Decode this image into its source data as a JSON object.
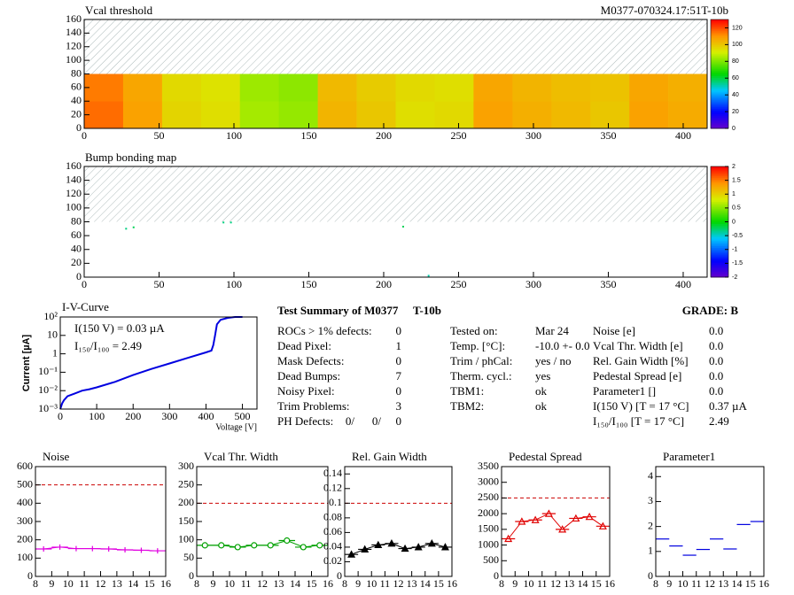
{
  "chart_data": [
    {
      "type": "heatmap",
      "title": "Vcal threshold",
      "subtitle": "M0377-070324.17:51T-10b",
      "xbins": [
        0,
        26,
        52,
        78,
        104,
        130,
        156,
        182,
        208,
        234,
        260,
        286,
        312,
        338,
        364,
        390,
        416
      ],
      "ybins": [
        0,
        40,
        80
      ],
      "values": [
        [
          116,
          108,
          97,
          95,
          85,
          83,
          104,
          100,
          95,
          96,
          108,
          105,
          103,
          100,
          108,
          106
        ],
        [
          114,
          107,
          96,
          94,
          84,
          82,
          103,
          99,
          96,
          95,
          107,
          104,
          102,
          101,
          107,
          105
        ]
      ],
      "xlim": [
        0,
        416
      ],
      "xticks": [
        0,
        50,
        100,
        150,
        200,
        250,
        300,
        350,
        400
      ],
      "ylim": [
        0,
        160
      ],
      "yticks": [
        0,
        20,
        40,
        60,
        80,
        100,
        120,
        140,
        160
      ],
      "zlim": [
        0,
        130
      ],
      "zticks": [
        0,
        20,
        40,
        60,
        80,
        100,
        120
      ]
    },
    {
      "type": "heatmap",
      "title": "Bump bonding map",
      "xbins": [
        0,
        416
      ],
      "ybins": [
        0,
        80
      ],
      "points": {
        "x": [
          28,
          33,
          93,
          98,
          213,
          230
        ],
        "y": [
          70,
          72,
          79,
          79,
          73,
          2
        ],
        "values": [
          -0.3,
          -0.2,
          -0.3,
          -0.3,
          -0.2,
          -0.4
        ]
      },
      "xlim": [
        0,
        416
      ],
      "xticks": [
        0,
        50,
        100,
        150,
        200,
        250,
        300,
        350,
        400
      ],
      "ylim": [
        0,
        160
      ],
      "yticks": [
        0,
        20,
        40,
        60,
        80,
        100,
        120,
        140,
        160
      ],
      "zlim": [
        -2,
        2
      ],
      "zticks": [
        -2,
        -1.5,
        -1,
        -0.5,
        0,
        0.5,
        1,
        1.5,
        2
      ]
    },
    {
      "type": "line",
      "title": "I-V-Curve",
      "x_label": "Voltage [V]",
      "y_label": "Current [µA]",
      "log_y": true,
      "color": "#0000e0",
      "annotations": [
        "I(150 V) = 0.03 µA",
        "I₁₅₀/I₁₀₀ =  2.49"
      ],
      "x": [
        0,
        5,
        10,
        20,
        40,
        60,
        80,
        100,
        150,
        200,
        250,
        300,
        350,
        400,
        415,
        420,
        425,
        430,
        440,
        460,
        480,
        500
      ],
      "values": [
        0.001,
        0.002,
        0.003,
        0.005,
        0.007,
        0.01,
        0.012,
        0.015,
        0.03,
        0.07,
        0.15,
        0.3,
        0.6,
        1.2,
        1.5,
        3,
        10,
        40,
        70,
        90,
        100,
        100
      ],
      "xlim": [
        0,
        540
      ],
      "xticks": [
        0,
        100,
        200,
        300,
        400,
        500
      ],
      "ylim": [
        0.001,
        100
      ],
      "yticks": [
        {
          "value": 0.001,
          "label": "10⁻³"
        },
        {
          "value": 0.01,
          "label": "10⁻²"
        },
        {
          "value": 0.1,
          "label": "10⁻¹"
        },
        1,
        10,
        {
          "value": 100,
          "label": "10²"
        }
      ]
    },
    {
      "type": "line",
      "title": "Noise",
      "marker": "plus",
      "color": "#e000e0",
      "x": [
        8.5,
        9.5,
        10.5,
        11.5,
        12.5,
        13.5,
        14.5,
        15.5
      ],
      "values": [
        150,
        160,
        152,
        152,
        150,
        145,
        143,
        140
      ],
      "xlim": [
        8,
        16
      ],
      "xticks": [
        8,
        9,
        10,
        11,
        12,
        13,
        14,
        15,
        16
      ],
      "ylim": [
        0,
        600
      ],
      "yticks": [
        0,
        100,
        200,
        300,
        400,
        500,
        600
      ],
      "ref_line": 500,
      "ref_color": "#cc0000"
    },
    {
      "type": "line",
      "title": "Vcal Thr. Width",
      "marker": "circle",
      "color": "#00a000",
      "x": [
        8.5,
        9.5,
        10.5,
        11.5,
        12.5,
        13.5,
        14.5,
        15.5
      ],
      "values": [
        85,
        85,
        80,
        85,
        85,
        98,
        80,
        85
      ],
      "xlim": [
        8,
        16
      ],
      "xticks": [
        8,
        9,
        10,
        11,
        12,
        13,
        14,
        15,
        16
      ],
      "ylim": [
        0,
        300
      ],
      "yticks": [
        0,
        50,
        100,
        150,
        200,
        250,
        300
      ],
      "ref_line": 200,
      "ref_color": "#cc0000"
    },
    {
      "type": "line",
      "title": "Rel. Gain Width",
      "marker": "filled-triangle",
      "color": "#000000",
      "x": [
        8.5,
        9.5,
        10.5,
        11.5,
        12.5,
        13.5,
        14.5,
        15.5
      ],
      "values": [
        0.03,
        0.037,
        0.043,
        0.045,
        0.038,
        0.04,
        0.045,
        0.04
      ],
      "xlim": [
        8,
        16
      ],
      "xticks": [
        8,
        9,
        10,
        11,
        12,
        13,
        14,
        15,
        16
      ],
      "ylim": [
        0,
        0.15
      ],
      "yticks": [
        0,
        0.02,
        0.04,
        0.06,
        0.08,
        0.1,
        0.12,
        0.14
      ],
      "ref_line": 0.1,
      "ref_color": "#cc0000"
    },
    {
      "type": "line",
      "title": "Pedestal Spread",
      "marker": "triangle",
      "color": "#e00000",
      "x": [
        8.5,
        9.5,
        10.5,
        11.5,
        12.5,
        13.5,
        14.5,
        15.5
      ],
      "values": [
        1200,
        1750,
        1800,
        2000,
        1500,
        1850,
        1900,
        1600
      ],
      "xlim": [
        8,
        16
      ],
      "xticks": [
        8,
        9,
        10,
        11,
        12,
        13,
        14,
        15,
        16
      ],
      "ylim": [
        0,
        3500
      ],
      "yticks": [
        0,
        500,
        1000,
        1500,
        2000,
        2500,
        3000,
        3500
      ],
      "ref_line": 2500,
      "ref_color": "#cc0000"
    },
    {
      "type": "scatter",
      "title": "Parameter1",
      "marker": "dash",
      "color": "#0000e0",
      "x": [
        8.5,
        9.5,
        10.5,
        11.5,
        12.5,
        13.5,
        14.5,
        15.5
      ],
      "values": [
        1.5,
        1.22,
        0.85,
        1.08,
        1.5,
        1.1,
        2.08,
        2.2
      ],
      "xlim": [
        8,
        16
      ],
      "xticks": [
        8,
        9,
        10,
        11,
        12,
        13,
        14,
        15,
        16
      ],
      "ylim": [
        0,
        4.4
      ],
      "yticks": [
        0,
        1,
        2,
        3,
        4
      ]
    }
  ],
  "summary": {
    "title": "Test Summary of M0377",
    "module_tag": "T-10b",
    "grade": "GRADE:  B",
    "defects": [
      {
        "label": "ROCs > 1% defects:",
        "value": "0"
      },
      {
        "label": "Dead Pixel:",
        "value": "1"
      },
      {
        "label": "Mask Defects:",
        "value": "0"
      },
      {
        "label": "Dead Bumps:",
        "value": "7"
      },
      {
        "label": "Noisy Pixel:",
        "value": "0"
      },
      {
        "label": "Trim Problems:",
        "value": "3"
      }
    ],
    "ph_defects": {
      "label": "PH Defects:",
      "values": [
        "0/",
        "0/",
        "0"
      ],
      "colors": [
        "#000000",
        "#e00000",
        "#0000e0"
      ]
    },
    "conditions": [
      {
        "label": "Tested on:",
        "value": "Mar 24"
      },
      {
        "label": "Temp. [°C]:",
        "value": "-10.0 +- 0.0"
      },
      {
        "label": "Trim / phCal:",
        "value": "yes / no"
      },
      {
        "label": "Therm. cycl.:",
        "value": "yes"
      },
      {
        "label": "TBM1:",
        "value": "ok"
      },
      {
        "label": "TBM2:",
        "value": "ok"
      }
    ],
    "results": [
      {
        "label": "Noise [e]",
        "value": "0.0"
      },
      {
        "label": "Vcal Thr. Width [e]",
        "value": "0.0"
      },
      {
        "label": "Rel. Gain Width [%]",
        "value": "0.0"
      },
      {
        "label": "Pedestal Spread [e]",
        "value": "0.0"
      },
      {
        "label": "Parameter1 []",
        "value": "0.0"
      },
      {
        "label": "I(150 V) [T = 17 °C]",
        "value": "0.37 µA"
      },
      {
        "label": "I₁₅₀/I₁₀₀  [T = 17 °C]",
        "value": "2.49"
      }
    ]
  }
}
